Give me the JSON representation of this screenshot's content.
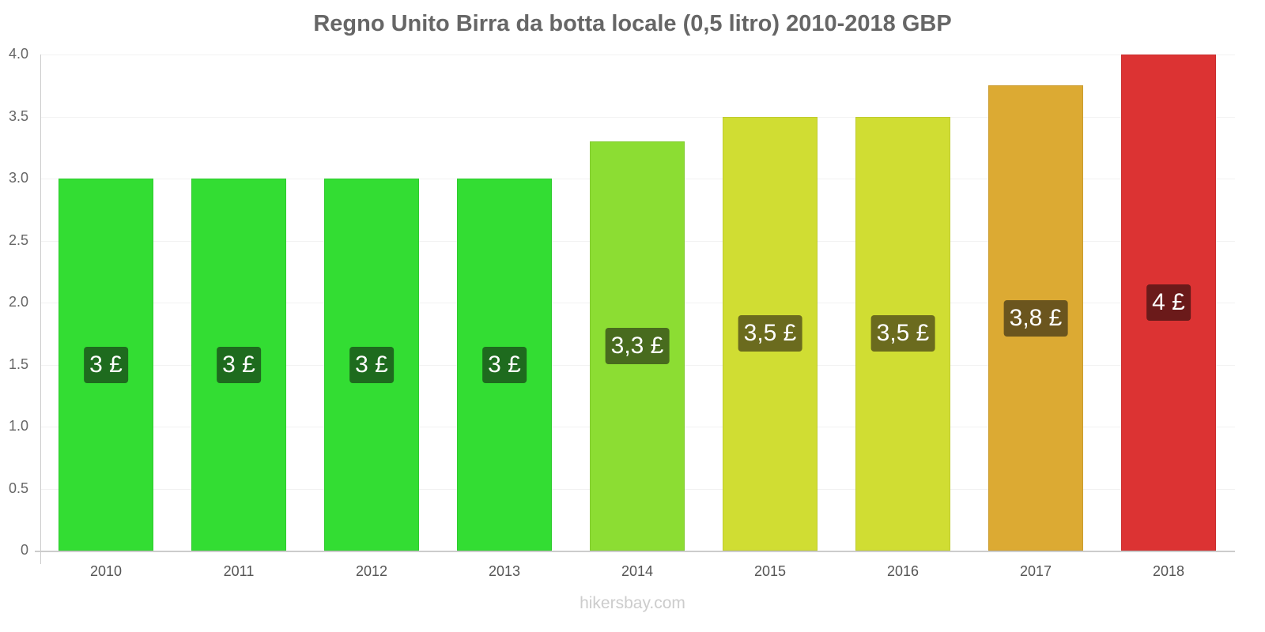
{
  "title": "Regno Unito Birra da botta locale (0,5 litro) 2010-2018 GBP",
  "watermark": "hikersbay.com",
  "y_ticks": [
    "0",
    "0.5",
    "1.0",
    "1.5",
    "2.0",
    "2.5",
    "3.0",
    "3.5",
    "4.0"
  ],
  "bars": [
    {
      "year": "2010",
      "label": "3 £",
      "color": "#33dd33",
      "label_bg": "#1e6b1e"
    },
    {
      "year": "2011",
      "label": "3 £",
      "color": "#33dd33",
      "label_bg": "#1e6b1e"
    },
    {
      "year": "2012",
      "label": "3 £",
      "color": "#33dd33",
      "label_bg": "#1e6b1e"
    },
    {
      "year": "2013",
      "label": "3 £",
      "color": "#33dd33",
      "label_bg": "#1e6b1e"
    },
    {
      "year": "2014",
      "label": "3,3 £",
      "color": "#8cdd33",
      "label_bg": "#486b1e"
    },
    {
      "year": "2015",
      "label": "3,5 £",
      "color": "#d0dd33",
      "label_bg": "#6b6b1e"
    },
    {
      "year": "2016",
      "label": "3,5 £",
      "color": "#d0dd33",
      "label_bg": "#6b6b1e"
    },
    {
      "year": "2017",
      "label": "3,8 £",
      "color": "#dcaa33",
      "label_bg": "#6b551e"
    },
    {
      "year": "2018",
      "label": "4 £",
      "color": "#dc3333",
      "label_bg": "#6b1a1a"
    }
  ],
  "chart_data": {
    "type": "bar",
    "title": "Regno Unito Birra da botta locale (0,5 litro) 2010-2018 GBP",
    "categories": [
      "2010",
      "2011",
      "2012",
      "2013",
      "2014",
      "2015",
      "2016",
      "2017",
      "2018"
    ],
    "values": [
      3.0,
      3.0,
      3.0,
      3.0,
      3.3,
      3.5,
      3.5,
      3.75,
      4.0
    ],
    "data_labels": [
      "3 £",
      "3 £",
      "3 £",
      "3 £",
      "3,3 £",
      "3,5 £",
      "3,5 £",
      "3,8 £",
      "4 £"
    ],
    "xlabel": "",
    "ylabel": "",
    "ylim": [
      0,
      4.0
    ],
    "yticks": [
      0,
      0.5,
      1.0,
      1.5,
      2.0,
      2.5,
      3.0,
      3.5,
      4.0
    ],
    "grid": true,
    "legend": "none"
  }
}
